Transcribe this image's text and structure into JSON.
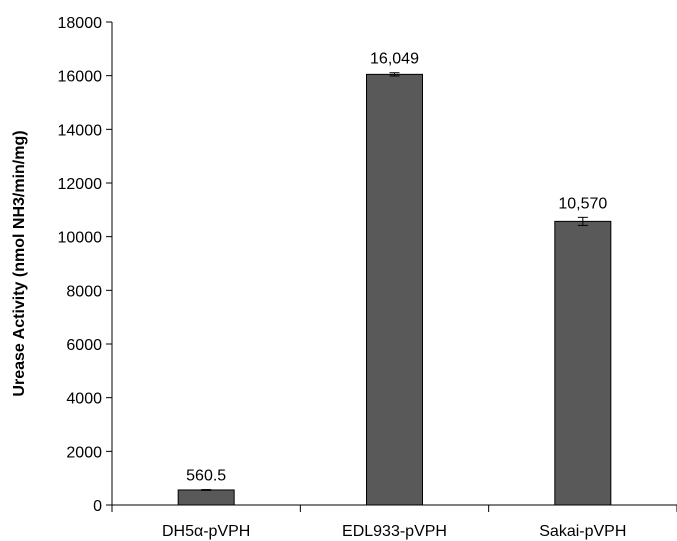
{
  "chart_data": {
    "type": "bar",
    "title": "",
    "xlabel": "",
    "ylabel": "Urease Activity (nmol NH3/min/mg)",
    "categories": [
      "DH5α-pVPH",
      "EDL933-pVPH",
      "Sakai-pVPH"
    ],
    "values": [
      560.5,
      16049,
      10570
    ],
    "data_labels": [
      "560.5",
      "16,049",
      "10,570"
    ],
    "error": [
      15,
      60,
      150
    ],
    "ylim": [
      0,
      18000
    ],
    "yticks": [
      0,
      2000,
      4000,
      6000,
      8000,
      10000,
      12000,
      14000,
      16000,
      18000
    ],
    "ytick_labels": [
      "0",
      "2000",
      "4000",
      "6000",
      "8000",
      "10000",
      "12000",
      "14000",
      "16000",
      "18000"
    ],
    "grid": false,
    "legend": "none",
    "colors": {
      "bar": "#595959",
      "bar_stroke": "#000000",
      "axis": "#000000"
    }
  }
}
